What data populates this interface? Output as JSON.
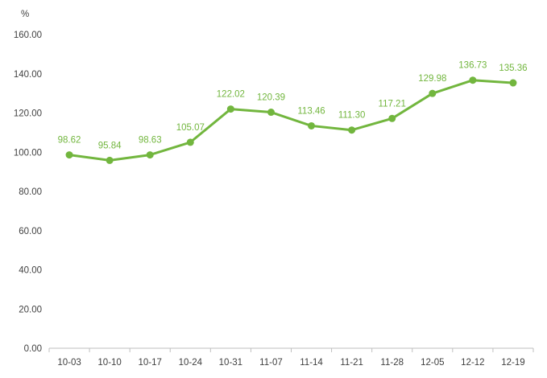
{
  "chart_data": {
    "type": "line",
    "title": "",
    "xlabel": "",
    "ylabel": "%",
    "ylim": [
      0,
      160
    ],
    "ytick_step": 20,
    "ytick_decimals": 2,
    "grid": false,
    "legend": "none",
    "categories": [
      "10-03",
      "10-10",
      "10-17",
      "10-24",
      "10-31",
      "11-07",
      "11-14",
      "11-21",
      "11-28",
      "12-05",
      "12-12",
      "12-19"
    ],
    "series": [
      {
        "values": [
          98.62,
          95.84,
          98.63,
          105.07,
          122.02,
          120.39,
          113.46,
          111.3,
          117.21,
          129.98,
          136.73,
          135.36
        ],
        "labels": [
          "98.62",
          "95.84",
          "98.63",
          "105.07",
          "122.02",
          "120.39",
          "113.46",
          "111.30",
          "117.21",
          "129.98",
          "136.73",
          "135.36"
        ],
        "color": "#72b63e"
      }
    ],
    "axis_color": "#bfbfbf",
    "text_color": "#404040"
  }
}
